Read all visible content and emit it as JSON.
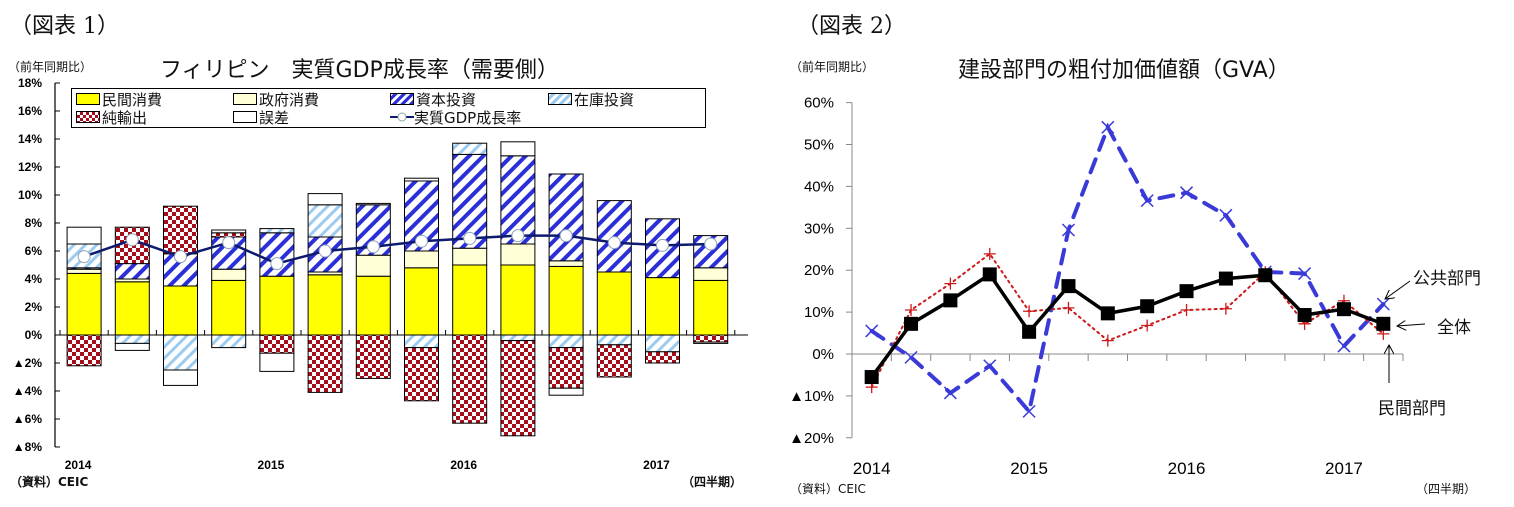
{
  "figure1": {
    "label": "（図表 1）",
    "unit": "（前年同期比）",
    "title": "フィリピン　実質GDP成長率（需要側）",
    "source": "（資料）CEIC",
    "period_label": "（四半期）",
    "year_labels": [
      "2014",
      "2015",
      "2016",
      "2017"
    ],
    "y_ticks": [
      "18%",
      "16%",
      "14%",
      "12%",
      "10%",
      "8%",
      "6%",
      "4%",
      "2%",
      "0%",
      "▲2%",
      "▲4%",
      "▲6%",
      "▲8%"
    ],
    "legend": {
      "private": "民間消費",
      "government": "政府消費",
      "capital": "資本投資",
      "inventory": "在庫投資",
      "net_exports": "純輸出",
      "error": "誤差",
      "gdp": "実質GDP成長率"
    }
  },
  "figure2": {
    "label": "（図表 2）",
    "unit": "（前年同期比）",
    "title": "建設部門の粗付加価値額（GVA）",
    "source": "（資料）CEIC",
    "period_label": "（四半期）",
    "year_labels": [
      "2014",
      "2015",
      "2016",
      "2017"
    ],
    "y_ticks": [
      "60%",
      "50%",
      "40%",
      "30%",
      "20%",
      "10%",
      "0%",
      "▲10%",
      "▲20%"
    ],
    "annotations": {
      "public": "公共部門",
      "total": "全体",
      "private": "民間部門"
    }
  },
  "chart_data": [
    {
      "type": "bar",
      "stacked": true,
      "title": "フィリピン　実質GDP成長率（需要側）",
      "ylabel": "（前年同期比）",
      "xlabel": "（四半期）",
      "ylim": [
        -8,
        18
      ],
      "categories": [
        "2014Q1",
        "2014Q2",
        "2014Q3",
        "2014Q4",
        "2015Q1",
        "2015Q2",
        "2015Q3",
        "2015Q4",
        "2016Q1",
        "2016Q2",
        "2016Q3",
        "2016Q4",
        "2017Q1",
        "2017Q2"
      ],
      "series": [
        {
          "name": "民間消費",
          "values": [
            4.4,
            3.8,
            3.5,
            3.9,
            4.2,
            4.3,
            4.2,
            4.8,
            5.0,
            5.0,
            4.9,
            4.5,
            4.1,
            3.9
          ]
        },
        {
          "name": "政府消費",
          "values": [
            0.3,
            0.2,
            0.0,
            0.8,
            0.0,
            0.2,
            1.5,
            1.2,
            1.2,
            1.5,
            0.4,
            0.0,
            0.0,
            0.9
          ]
        },
        {
          "name": "資本投資",
          "values": [
            0.1,
            1.1,
            2.3,
            2.3,
            3.1,
            2.5,
            3.6,
            5.0,
            6.7,
            6.3,
            6.2,
            5.1,
            4.2,
            2.3
          ]
        },
        {
          "name": "在庫投資",
          "values": [
            1.7,
            -0.6,
            -2.5,
            -0.9,
            0.3,
            2.3,
            0.0,
            -0.9,
            0.8,
            -0.4,
            -0.9,
            -0.7,
            -1.2,
            0.0
          ]
        },
        {
          "name": "純輸出",
          "values": [
            -2.2,
            2.6,
            3.4,
            0.3,
            -1.3,
            -4.1,
            -3.1,
            -3.8,
            -6.3,
            -6.8,
            -2.9,
            -2.3,
            -0.8,
            -0.5
          ]
        },
        {
          "name": "誤差",
          "values": [
            1.2,
            -0.5,
            -1.1,
            0.2,
            -1.3,
            0.8,
            0.1,
            0.2,
            0.0,
            1.0,
            -0.5,
            0.0,
            0.0,
            -0.1
          ]
        }
      ],
      "line": {
        "name": "実質GDP成長率",
        "values": [
          5.6,
          6.8,
          5.6,
          6.6,
          5.1,
          6.0,
          6.3,
          6.7,
          6.9,
          7.1,
          7.1,
          6.6,
          6.4,
          6.5
        ]
      }
    },
    {
      "type": "line",
      "title": "建設部門の粗付加価値額（GVA）",
      "ylabel": "（前年同期比）",
      "xlabel": "（四半期）",
      "ylim": [
        -20,
        60
      ],
      "categories": [
        "2014Q1",
        "2014Q2",
        "2014Q3",
        "2014Q4",
        "2015Q1",
        "2015Q2",
        "2015Q3",
        "2015Q4",
        "2016Q1",
        "2016Q2",
        "2016Q3",
        "2016Q4",
        "2017Q1",
        "2017Q2"
      ],
      "series": [
        {
          "name": "全体",
          "values": [
            -5.5,
            7.2,
            12.8,
            19.0,
            5.3,
            16.2,
            9.7,
            11.4,
            15.0,
            18.0,
            18.8,
            9.3,
            10.7,
            7.2
          ]
        },
        {
          "name": "民間部門",
          "values": [
            -7.9,
            10.5,
            16.8,
            23.9,
            10.2,
            11.0,
            3.2,
            6.8,
            10.5,
            10.8,
            19.5,
            7.2,
            12.7,
            4.8
          ]
        },
        {
          "name": "公共部門",
          "values": [
            5.5,
            -0.8,
            -9.3,
            -2.8,
            -13.7,
            29.6,
            54.1,
            36.6,
            38.5,
            33.1,
            19.6,
            19.2,
            1.9,
            11.9
          ]
        }
      ]
    }
  ]
}
